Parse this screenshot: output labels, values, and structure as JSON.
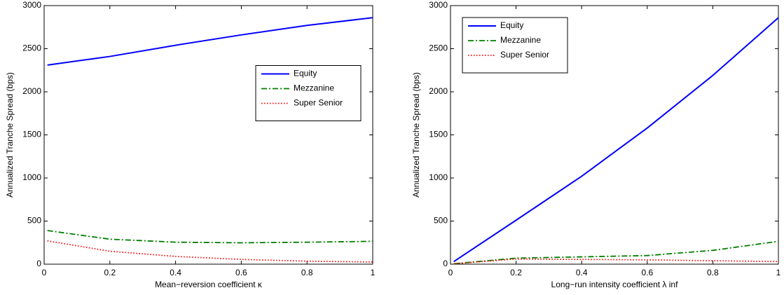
{
  "chart_data": [
    {
      "type": "line",
      "xlabel": "Mean−reversion coefficient κ",
      "ylabel": "Annualized Tranche Spread (bps)",
      "x": [
        0.01,
        0.2,
        0.4,
        0.6,
        0.8,
        1
      ],
      "series": [
        {
          "name": "Equity",
          "color": "#0000ff",
          "style": "solid",
          "values": [
            2310,
            2410,
            2540,
            2660,
            2770,
            2860
          ]
        },
        {
          "name": "Mezzanine",
          "color": "#007f00",
          "style": "dashdot",
          "values": [
            390,
            290,
            255,
            248,
            255,
            265
          ]
        },
        {
          "name": "Super Senior",
          "color": "#ff0000",
          "style": "dotted",
          "values": [
            270,
            150,
            90,
            55,
            35,
            25
          ]
        }
      ],
      "xlim": [
        0,
        1
      ],
      "xticks": [
        0,
        0.2,
        0.4,
        0.6,
        0.8,
        1
      ],
      "ylim": [
        0,
        3000
      ],
      "yticks": [
        0,
        500,
        1000,
        1500,
        2000,
        2500,
        3000
      ],
      "grid": false,
      "legend": "center right"
    },
    {
      "type": "line",
      "xlabel": "Long−run intensity coefficient λ inf",
      "ylabel": "Annualized Tranche Spread (bps)",
      "x": [
        0.01,
        0.2,
        0.4,
        0.6,
        0.8,
        1
      ],
      "series": [
        {
          "name": "Equity",
          "color": "#0000ff",
          "style": "solid",
          "values": [
            30,
            510,
            1020,
            1580,
            2190,
            2860
          ]
        },
        {
          "name": "Mezzanine",
          "color": "#007f00",
          "style": "dashdot",
          "values": [
            5,
            70,
            85,
            100,
            160,
            265
          ]
        },
        {
          "name": "Super Senior",
          "color": "#ff0000",
          "style": "dotted",
          "values": [
            5,
            60,
            55,
            50,
            40,
            30
          ]
        }
      ],
      "xlim": [
        0,
        1
      ],
      "xticks": [
        0,
        0.2,
        0.4,
        0.6,
        0.8,
        1
      ],
      "ylim": [
        0,
        3000
      ],
      "yticks": [
        0,
        500,
        1000,
        1500,
        2000,
        2500,
        3000
      ],
      "grid": false,
      "legend": "upper left"
    }
  ]
}
